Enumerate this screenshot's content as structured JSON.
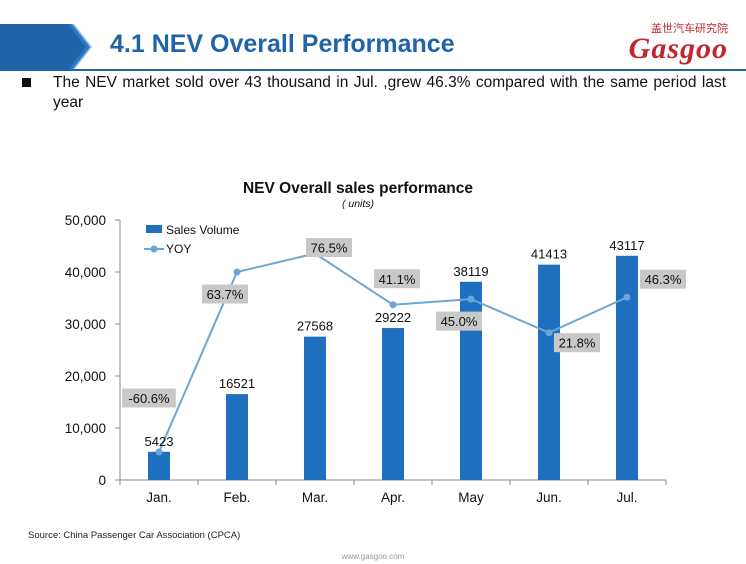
{
  "header": {
    "title": "4.1 NEV Overall Performance",
    "logo_cn": "盖世汽车研究院",
    "logo_en": "Gasgoo",
    "band_color": "#1f63a8",
    "title_color": "#1f63a8",
    "logo_color": "#c0282d"
  },
  "summary": {
    "text": "The NEV market sold over 43 thousand in Jul. ,grew 46.3% compared with the same period last year"
  },
  "chart_data": {
    "type": "bar",
    "title": "NEV Overall sales performance",
    "subtitle": "( units)",
    "categories": [
      "Jan.",
      "Feb.",
      "Mar.",
      "Apr.",
      "May",
      "Jun.",
      "Jul."
    ],
    "series": [
      {
        "name": "Sales Volume",
        "type": "bar",
        "axis": "left",
        "color": "#1f6fbf",
        "values": [
          5423,
          16521,
          27568,
          29222,
          38119,
          41413,
          43117
        ],
        "labels": [
          "5423",
          "16521",
          "27568",
          "29222",
          "38119",
          "41413",
          "43117"
        ]
      },
      {
        "name": "YOY",
        "type": "line",
        "axis": "right",
        "color": "#6aa6d8",
        "values": [
          -60.6,
          63.7,
          76.5,
          41.1,
          45.0,
          21.8,
          46.3
        ],
        "labels": [
          "-60.6%",
          "63.7%",
          "76.5%",
          "41.1%",
          "45.0%",
          "21.8%",
          "46.3%"
        ]
      }
    ],
    "y_ticks": [
      "0",
      "10,000",
      "20,000",
      "30,000",
      "40,000",
      "50,000"
    ],
    "ylim": [
      0,
      50000
    ],
    "legend_position": "top-left",
    "grid": false,
    "label_box_color": "#c8c8c8"
  },
  "footer": {
    "source": "Source: China Passenger Car Association (CPCA)",
    "url": "www.gasgoo.com"
  }
}
